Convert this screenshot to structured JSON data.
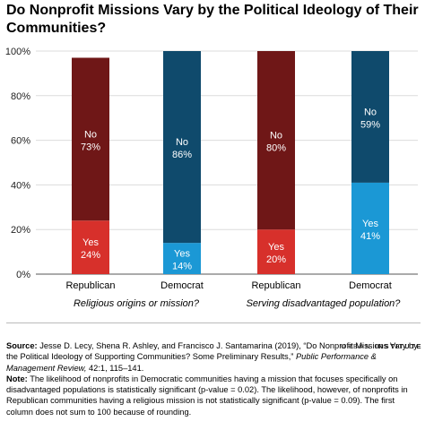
{
  "chart_data": {
    "type": "bar",
    "stacked": true,
    "title": "Do Nonprofit Missions Vary by the Political Ideology of Their Communities?",
    "ylim": [
      0,
      100
    ],
    "yticks": [
      "0%",
      "20%",
      "40%",
      "60%",
      "80%",
      "100%"
    ],
    "groups": [
      "Religious origins or mission?",
      "Serving disadvantaged population?"
    ],
    "bars": [
      {
        "category": "Republican",
        "group": 0,
        "yes": 24,
        "no": 73,
        "yes_label": "Yes",
        "yes_pct": "24%",
        "no_label": "No",
        "no_pct": "73%",
        "yes_color": "#d7302b",
        "no_color": "#6f1717"
      },
      {
        "category": "Democrat",
        "group": 0,
        "yes": 14,
        "no": 86,
        "yes_label": "Yes",
        "yes_pct": "14%",
        "no_label": "No",
        "no_pct": "86%",
        "yes_color": "#1b98d5",
        "no_color": "#0f4a6c"
      },
      {
        "category": "Republican",
        "group": 1,
        "yes": 20,
        "no": 80,
        "yes_label": "Yes",
        "yes_pct": "20%",
        "no_label": "No",
        "no_pct": "80%",
        "yes_color": "#d7302b",
        "no_color": "#6f1717"
      },
      {
        "category": "Democrat",
        "group": 1,
        "yes": 41,
        "no": 59,
        "yes_label": "Yes",
        "yes_pct": "41%",
        "no_label": "No",
        "no_pct": "59%",
        "yes_color": "#1b98d5",
        "no_color": "#0f4a6c"
      }
    ],
    "grid": true
  },
  "footer": {
    "source_label": "Source:",
    "source_text": "Jesse D. Lecy, Shena R. Ashley, and Francisco J. Santamarina (2019), “Do Nonprofit Missions Vary by the Political Ideology of Supporting Communities? Some Preliminary Results,”",
    "journal": "Public Performance & Management Review,",
    "citation_end": "42:1, 115–141.",
    "note_label": "Note:",
    "note_text": "The likelihood of nonprofits in Democratic communities having a mission that focuses specifically on disadvantaged populations is statistically significant (p-value = 0.02). The likelihood, however, of nonprofits in Republican communities having a religious mission is not statistically significant (p-value = 0.09). The first column does not sum to 100 because of rounding."
  },
  "brand": {
    "part1": "URBAN",
    "part2": "INSTITUTE"
  }
}
